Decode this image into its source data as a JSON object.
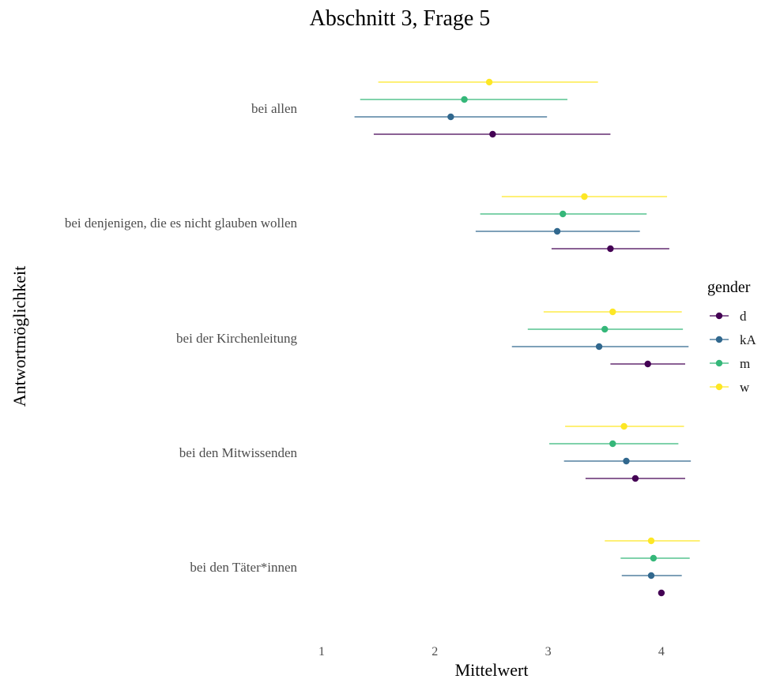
{
  "chart_data": {
    "type": "scatter",
    "title": "Abschnitt 3, Frage 5",
    "xlabel": "Mittelwert",
    "ylabel": "Antwortmöglichkeit",
    "xlim": [
      1,
      4
    ],
    "xticks": [
      1,
      2,
      3,
      4
    ],
    "grid": false,
    "legend": {
      "title": "gender",
      "position": "right"
    },
    "categories": [
      "bei allen",
      "bei denjenigen, die es nicht glauben wollen",
      "bei der Kirchenleitung",
      "bei den Mitwissenden",
      "bei den Täter*innen"
    ],
    "series": [
      {
        "name": "w",
        "color": "#FDE725",
        "values": [
          2.48,
          3.32,
          3.57,
          3.67,
          3.91
        ],
        "lower": [
          1.5,
          2.59,
          2.96,
          3.15,
          3.5
        ],
        "upper": [
          3.44,
          4.05,
          4.18,
          4.2,
          4.34
        ]
      },
      {
        "name": "m",
        "color": "#35B779",
        "values": [
          2.26,
          3.13,
          3.5,
          3.57,
          3.93
        ],
        "lower": [
          1.34,
          2.4,
          2.82,
          3.01,
          3.64
        ],
        "upper": [
          3.17,
          3.87,
          4.19,
          4.15,
          4.25
        ]
      },
      {
        "name": "kA",
        "color": "#31688E",
        "values": [
          2.14,
          3.08,
          3.45,
          3.69,
          3.91
        ],
        "lower": [
          1.29,
          2.36,
          2.68,
          3.14,
          3.65
        ],
        "upper": [
          2.99,
          3.81,
          4.24,
          4.26,
          4.18
        ]
      },
      {
        "name": "d",
        "color": "#440154",
        "values": [
          2.51,
          3.55,
          3.88,
          3.77,
          4.0
        ],
        "lower": [
          1.46,
          3.03,
          3.55,
          3.33,
          4.0
        ],
        "upper": [
          3.55,
          4.07,
          4.21,
          4.21,
          4.0
        ]
      }
    ]
  },
  "legend_order": [
    "d",
    "kA",
    "m",
    "w"
  ]
}
